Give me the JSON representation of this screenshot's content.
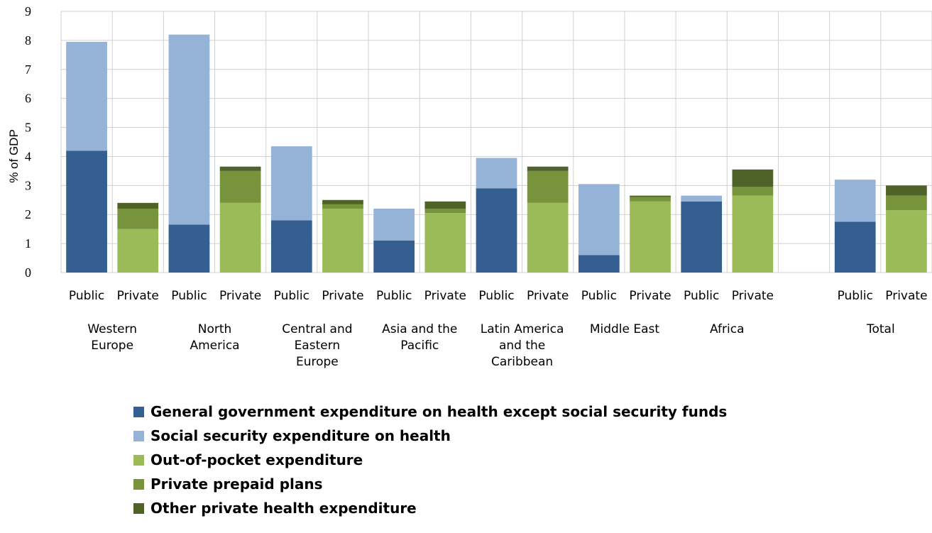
{
  "chart_data": {
    "type": "bar",
    "stacked": true,
    "ylabel": "% of GDP",
    "ylim": [
      0,
      9
    ],
    "yticks": [
      "0",
      "1",
      "2",
      "3",
      "4",
      "5",
      "6",
      "7",
      "8",
      "9"
    ],
    "grid": true,
    "legend_position": "bottom",
    "groups": [
      {
        "label": "Western Europe",
        "label_lines": [
          "Western",
          "Europe"
        ]
      },
      {
        "label": "North America",
        "label_lines": [
          "North",
          "America"
        ]
      },
      {
        "label": "Central and Eastern Europe",
        "label_lines": [
          "Central and",
          "Eastern",
          "Europe"
        ]
      },
      {
        "label": "Asia and the Pacific",
        "label_lines": [
          "Asia and the",
          "Pacific"
        ]
      },
      {
        "label": "Latin America and the Caribbean",
        "label_lines": [
          "Latin America",
          "and the",
          "Caribbean"
        ]
      },
      {
        "label": "Middle East",
        "label_lines": [
          "Middle East"
        ]
      },
      {
        "label": "Africa",
        "label_lines": [
          "Africa"
        ]
      },
      {
        "label": "Total",
        "label_lines": [
          "Total"
        ]
      }
    ],
    "categories": [
      {
        "label": "Public",
        "group": 0
      },
      {
        "label": "Private",
        "group": 0
      },
      {
        "label": "Public",
        "group": 1
      },
      {
        "label": "Private",
        "group": 1
      },
      {
        "label": "Public",
        "group": 2
      },
      {
        "label": "Private",
        "group": 2
      },
      {
        "label": "Public",
        "group": 3
      },
      {
        "label": "Private",
        "group": 3
      },
      {
        "label": "Public",
        "group": 4
      },
      {
        "label": "Private",
        "group": 4
      },
      {
        "label": "Public",
        "group": 5
      },
      {
        "label": "Private",
        "group": 5
      },
      {
        "label": "Public",
        "group": 6
      },
      {
        "label": "Private",
        "group": 6
      },
      {
        "label": "",
        "group": null
      },
      {
        "label": "Public",
        "group": 7
      },
      {
        "label": "Private",
        "group": 7
      }
    ],
    "series": [
      {
        "name": "General government expenditure on health except social security funds",
        "color": "#355F91",
        "values": [
          4.2,
          0,
          1.65,
          0,
          1.8,
          0,
          1.1,
          0,
          2.9,
          0,
          0.6,
          0,
          2.45,
          0,
          0,
          1.75,
          0
        ]
      },
      {
        "name": "Social security expenditure on health",
        "color": "#95B3D7",
        "values": [
          3.75,
          0,
          6.55,
          0,
          2.55,
          0,
          1.1,
          0,
          1.05,
          0,
          2.45,
          0,
          0.2,
          0,
          0,
          1.45,
          0
        ]
      },
      {
        "name": "Out-of-pocket expenditure",
        "color": "#9BBB59",
        "values": [
          0,
          1.5,
          0,
          2.4,
          0,
          2.2,
          0,
          2.05,
          0,
          2.4,
          0,
          2.45,
          0,
          2.65,
          0,
          0,
          2.15
        ]
      },
      {
        "name": "Private prepaid plans",
        "color": "#77933C",
        "values": [
          0,
          0.7,
          0,
          1.1,
          0,
          0.15,
          0,
          0.15,
          0,
          1.1,
          0,
          0.15,
          0,
          0.3,
          0,
          0,
          0.5
        ]
      },
      {
        "name": "Other private health expenditure",
        "color": "#4F6228",
        "values": [
          0,
          0.2,
          0,
          0.15,
          0,
          0.15,
          0,
          0.25,
          0,
          0.15,
          0,
          0.05,
          0,
          0.6,
          0,
          0,
          0.35
        ]
      }
    ]
  },
  "legend_order": [
    0,
    1,
    2,
    3,
    4
  ]
}
